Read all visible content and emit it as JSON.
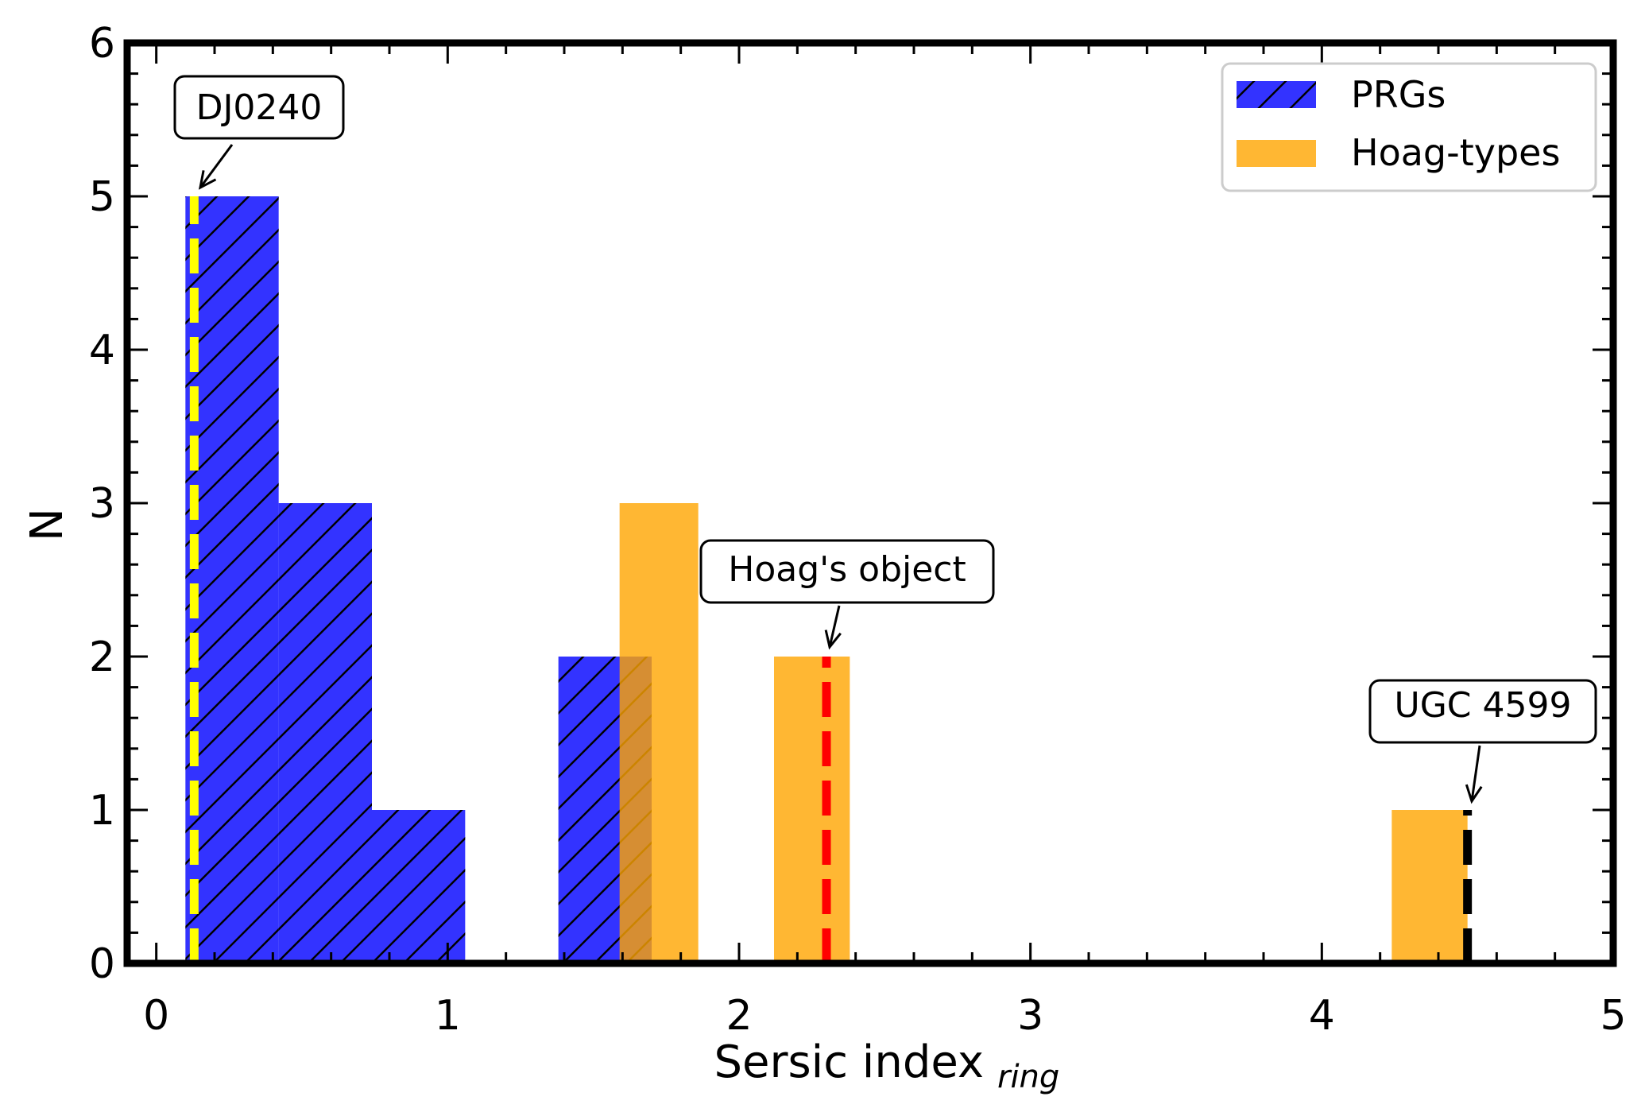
{
  "chart_data": {
    "type": "bar",
    "xlabel": "Sersic index",
    "xlabel_sub": "ring",
    "ylabel": "N",
    "xlim": [
      -0.1,
      5.0
    ],
    "ylim": [
      0,
      6
    ],
    "x_ticks": [
      "0",
      "1",
      "2",
      "3",
      "4",
      "5"
    ],
    "y_ticks": [
      "0",
      "1",
      "2",
      "3",
      "4",
      "5",
      "6"
    ],
    "grid": false,
    "legend_position": "top-right",
    "series": [
      {
        "name": "PRGs",
        "color": "#0000ff",
        "hatch": "//",
        "bins": [
          {
            "x0": 0.1,
            "x1": 0.42,
            "count": 5
          },
          {
            "x0": 0.42,
            "x1": 0.74,
            "count": 3
          },
          {
            "x0": 0.74,
            "x1": 1.06,
            "count": 1
          },
          {
            "x0": 1.06,
            "x1": 1.38,
            "count": 0
          },
          {
            "x0": 1.38,
            "x1": 1.7,
            "count": 2
          }
        ]
      },
      {
        "name": "Hoag-types",
        "color": "#ffa500",
        "hatch": "",
        "bins": [
          {
            "x0": 1.59,
            "x1": 1.86,
            "count": 3
          },
          {
            "x0": 2.12,
            "x1": 2.38,
            "count": 2
          },
          {
            "x0": 4.24,
            "x1": 4.5,
            "count": 1
          }
        ]
      }
    ],
    "markers": [
      {
        "x": 0.13,
        "color": "#ffff00",
        "label": "DJ0240",
        "ymax": 5
      },
      {
        "x": 2.3,
        "color": "#ff0000",
        "label": "Hoag's object",
        "ymax": 2
      },
      {
        "x": 4.5,
        "color": "#000000",
        "label": "UGC 4599",
        "ymax": 1
      }
    ]
  }
}
